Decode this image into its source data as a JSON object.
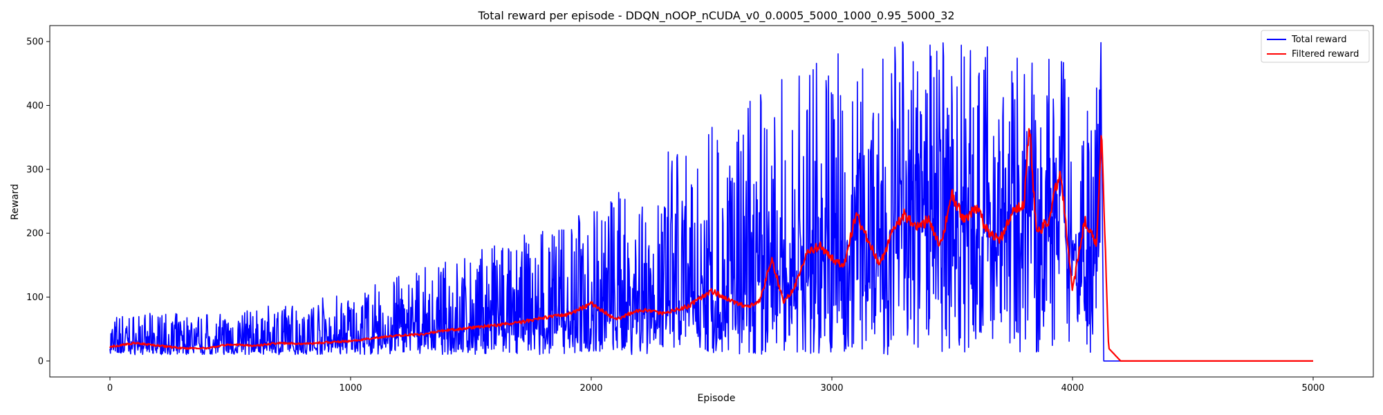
{
  "chart_data": {
    "type": "line",
    "title": "Total reward per episode - DDQN_nOOP_nCUDA_v0_0.0005_5000_1000_0.95_5000_32",
    "xlabel": "Episode",
    "ylabel": "Reward",
    "xlim": [
      -250,
      5250
    ],
    "ylim": [
      -25,
      525
    ],
    "xticks": [
      0,
      1000,
      2000,
      3000,
      4000,
      5000
    ],
    "yticks": [
      0,
      100,
      200,
      300,
      400,
      500
    ],
    "grid": false,
    "legend_position": "top-right",
    "series": [
      {
        "name": "Total reward",
        "color": "#0000ff",
        "x": [
          0,
          100,
          200,
          300,
          400,
          500,
          600,
          700,
          800,
          900,
          1000,
          1100,
          1200,
          1300,
          1400,
          1500,
          1600,
          1700,
          1800,
          1900,
          2000,
          2100,
          2200,
          2300,
          2400,
          2500,
          2600,
          2700,
          2800,
          2900,
          3000,
          3050,
          3100,
          3200,
          3300,
          3400,
          3500,
          3600,
          3700,
          3800,
          3900,
          4000,
          4050,
          4100,
          4120,
          4130,
          5000
        ],
        "y": [
          20,
          25,
          22,
          24,
          22,
          24,
          26,
          28,
          28,
          30,
          32,
          36,
          42,
          45,
          48,
          52,
          55,
          58,
          62,
          68,
          80,
          70,
          75,
          80,
          90,
          95,
          100,
          110,
          130,
          140,
          150,
          180,
          200,
          190,
          220,
          230,
          210,
          200,
          220,
          230,
          250,
          180,
          150,
          300,
          500,
          0,
          0
        ],
        "noise_band": {
          "x": [
            0,
            500,
            1000,
            1500,
            2000,
            2500,
            3000,
            3100,
            3500,
            3800,
            4000,
            4100,
            4120
          ],
          "max": [
            75,
            75,
            110,
            170,
            240,
            380,
            490,
            500,
            500,
            500,
            460,
            500,
            500
          ],
          "min": [
            10,
            10,
            10,
            10,
            10,
            10,
            10,
            10,
            10,
            10,
            10,
            10,
            10
          ]
        }
      },
      {
        "name": "Filtered reward",
        "color": "#ff0000",
        "x": [
          0,
          100,
          200,
          300,
          400,
          500,
          600,
          700,
          800,
          900,
          1000,
          1100,
          1200,
          1300,
          1400,
          1500,
          1600,
          1700,
          1800,
          1900,
          2000,
          2100,
          2200,
          2300,
          2400,
          2500,
          2600,
          2650,
          2700,
          2750,
          2800,
          2850,
          2900,
          2950,
          3000,
          3050,
          3100,
          3150,
          3200,
          3250,
          3300,
          3350,
          3400,
          3450,
          3500,
          3550,
          3600,
          3650,
          3700,
          3750,
          3800,
          3820,
          3850,
          3900,
          3950,
          4000,
          4050,
          4100,
          4120,
          4150,
          4200,
          5000
        ],
        "y": [
          22,
          28,
          24,
          20,
          20,
          26,
          24,
          28,
          27,
          29,
          31,
          36,
          40,
          42,
          48,
          52,
          56,
          60,
          68,
          72,
          90,
          65,
          80,
          75,
          85,
          110,
          90,
          85,
          95,
          160,
          90,
          120,
          170,
          180,
          160,
          150,
          230,
          190,
          150,
          200,
          230,
          210,
          220,
          180,
          260,
          220,
          240,
          200,
          190,
          230,
          250,
          370,
          200,
          220,
          300,
          110,
          220,
          180,
          360,
          20,
          0,
          0
        ]
      }
    ]
  }
}
